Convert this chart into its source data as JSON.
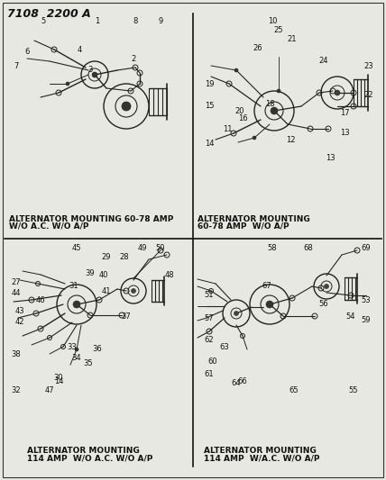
{
  "title_code": "7108  2200 A",
  "background_color": "#e8e8e2",
  "panels": [
    {
      "id": "top_left",
      "caption_line1": "ALTERNATOR MOUNTING 60-78 AMP",
      "caption_line2": "W/O A.C. W/O A/P"
    },
    {
      "id": "top_right",
      "caption_line1": "ALTERNATOR MOUNTING",
      "caption_line2": "60-78 AMP  W/O A/P"
    },
    {
      "id": "bottom_left",
      "caption_line1": "ALTERNATOR MOUNTING",
      "caption_line2": "114 AMP  W/O A.C. W/O A/P"
    },
    {
      "id": "bottom_right",
      "caption_line1": "ALTERNATOR MOUNTING",
      "caption_line2": "114 AMP  W/A.C. W/O A/P"
    }
  ],
  "divider_color": "#111111",
  "text_color": "#111111",
  "line_color": "#222222",
  "title_fontsize": 9,
  "caption_fontsize": 6.5,
  "number_fontsize": 6.0,
  "border_color": "#333333"
}
